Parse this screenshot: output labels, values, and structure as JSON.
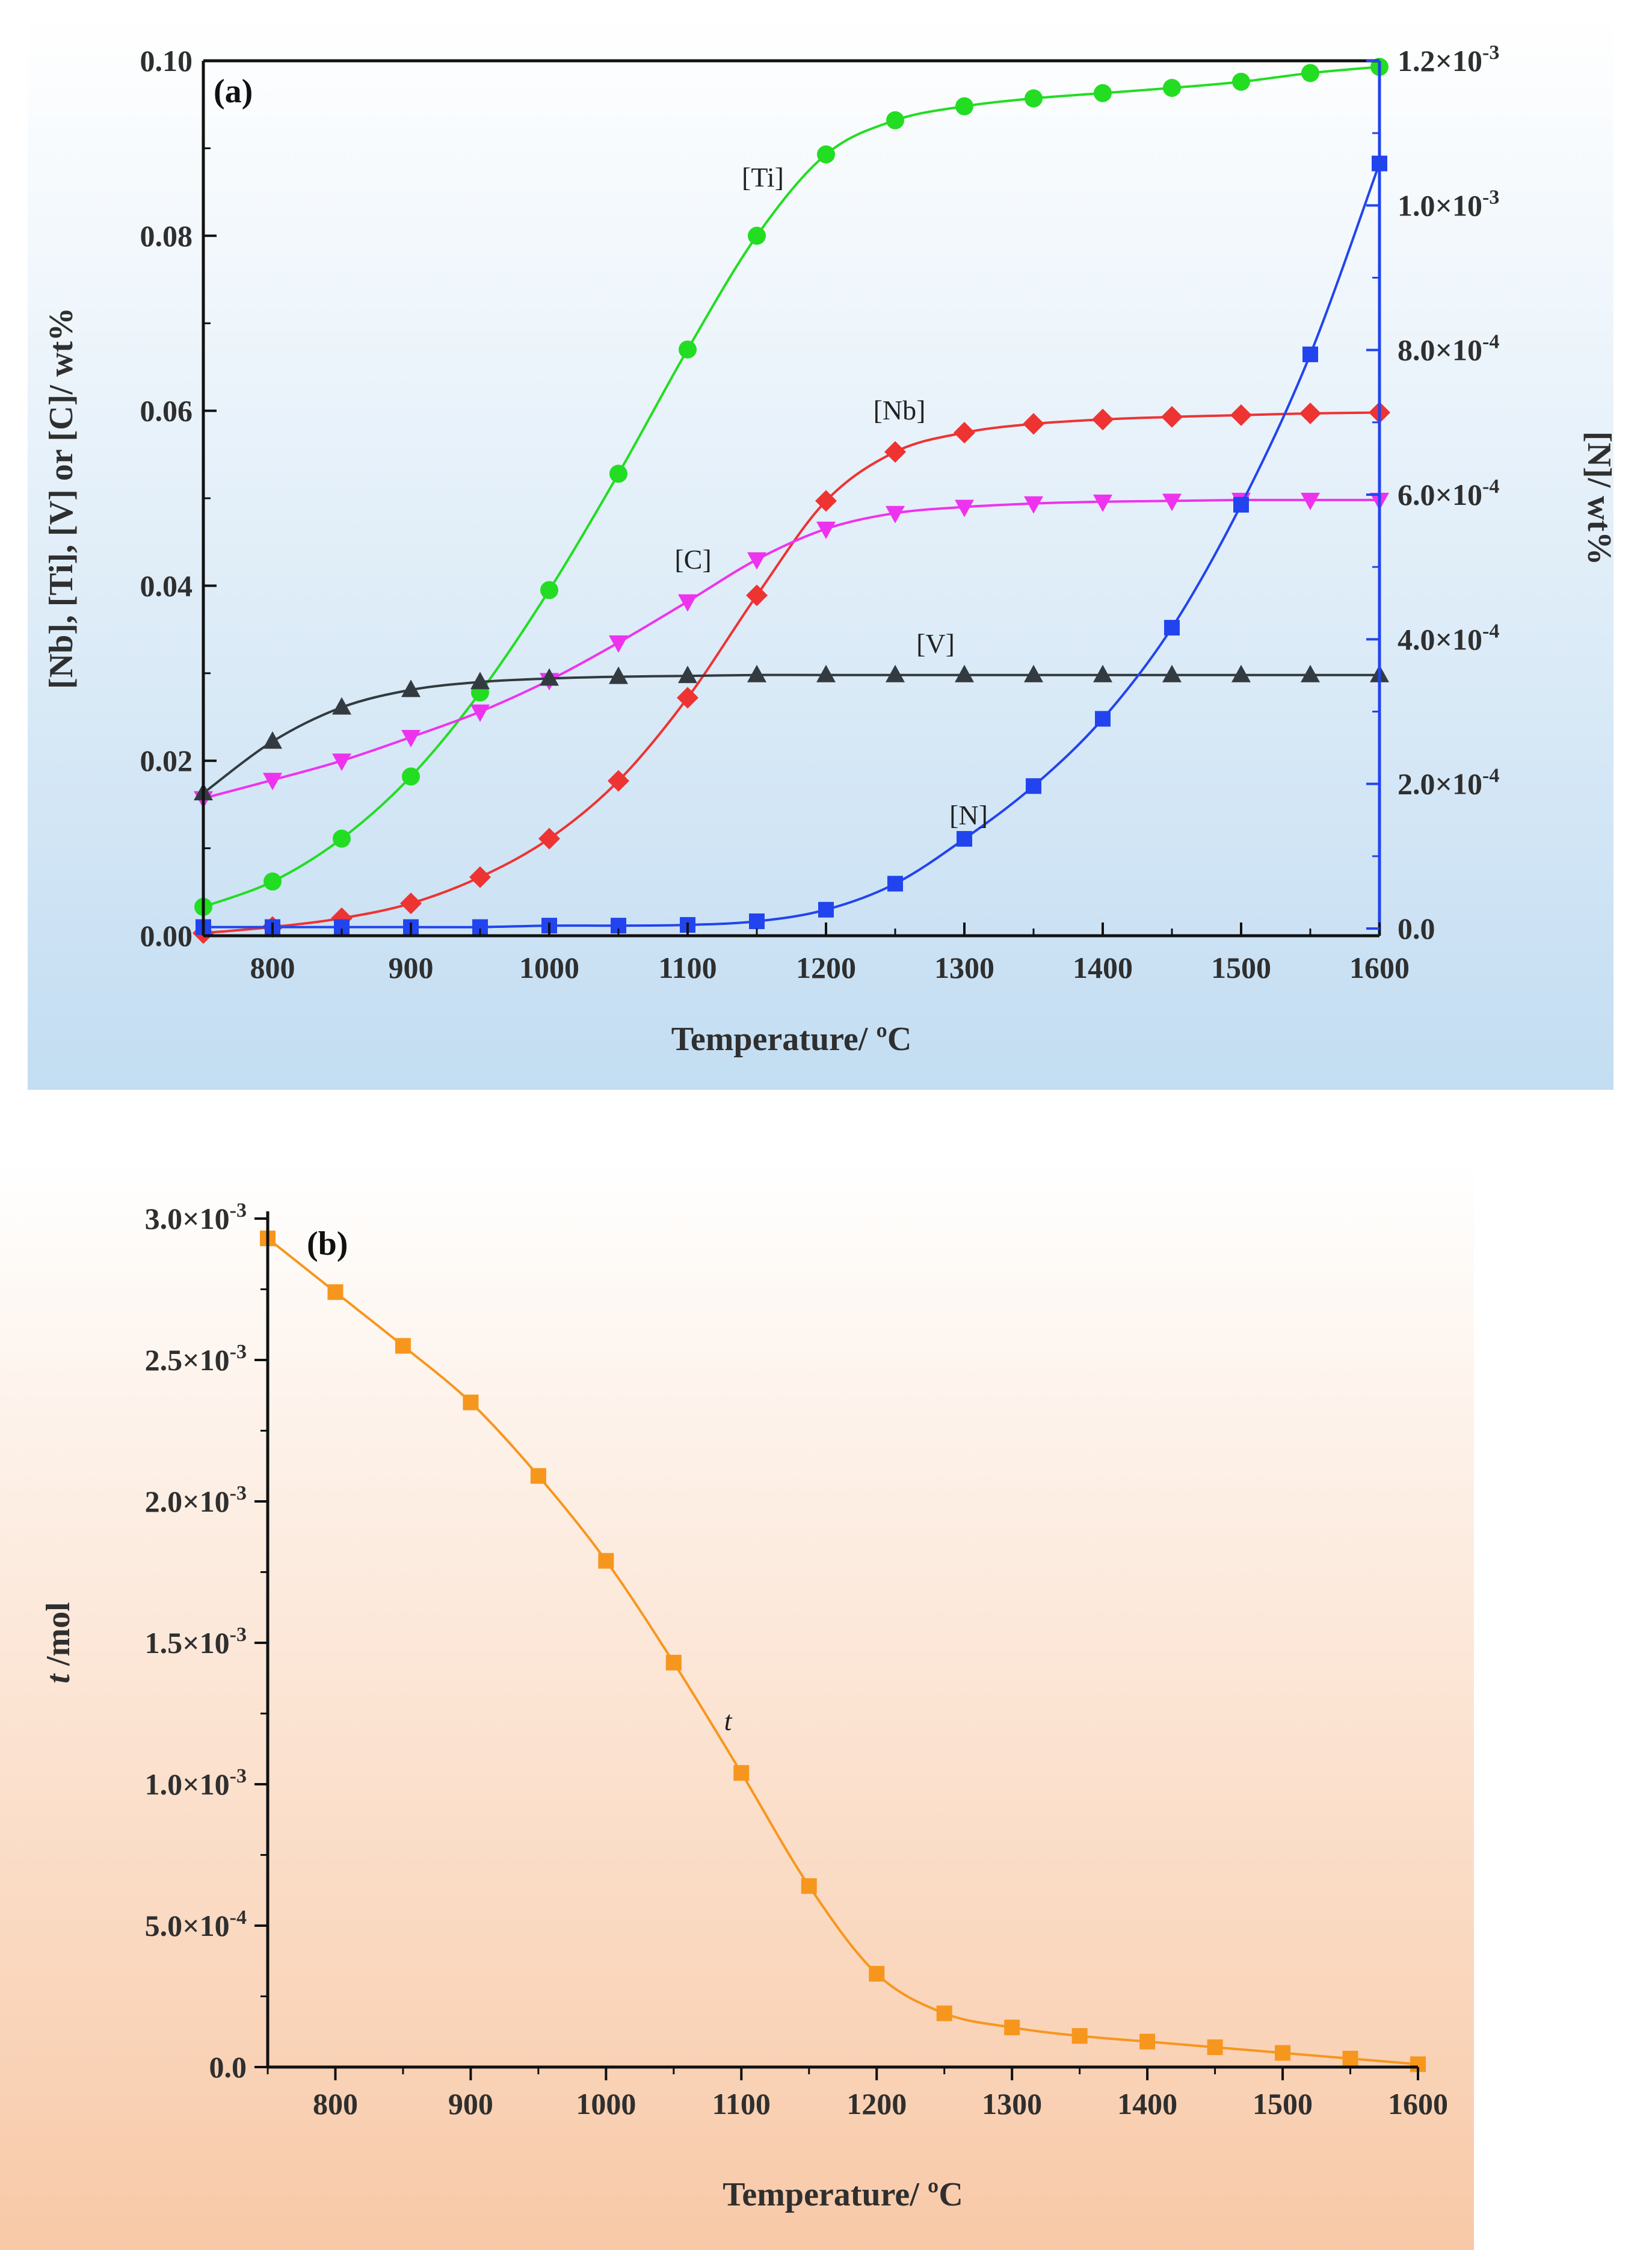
{
  "chart_data": [
    {
      "panel": "(a)",
      "type": "line",
      "xlabel": "Temperature/ ºC",
      "ylabel_left": "[Nb], [Ti], [V] or [C]/ wt%",
      "ylabel_right": "[N]/ wt%",
      "xlim": [
        750,
        1600
      ],
      "ylim_left": [
        0,
        0.1
      ],
      "ylim_right": [
        -1e-05,
        0.0012
      ],
      "x_ticks": [
        "800",
        "900",
        "1000",
        "1100",
        "1200",
        "1300",
        "1400",
        "1500",
        "1600"
      ],
      "y_left_ticks": [
        "0.00",
        "0.02",
        "0.04",
        "0.06",
        "0.08",
        "0.10"
      ],
      "y_right_ticks": [
        {
          "mant": "0.0",
          "exp": ""
        },
        {
          "mant": "2.0×10",
          "exp": "-4"
        },
        {
          "mant": "4.0×10",
          "exp": "-4"
        },
        {
          "mant": "6.0×10",
          "exp": "-4"
        },
        {
          "mant": "8.0×10",
          "exp": "-4"
        },
        {
          "mant": "1.0×10",
          "exp": "-3"
        },
        {
          "mant": "1.2×10",
          "exp": "-3"
        }
      ],
      "x": [
        750,
        800,
        850,
        900,
        950,
        1000,
        1050,
        1100,
        1150,
        1200,
        1250,
        1300,
        1350,
        1400,
        1450,
        1500,
        1550,
        1600
      ],
      "series": [
        {
          "name": "[Ti]",
          "axis": "left",
          "marker": "circle",
          "color": "#22dd22",
          "values": [
            0.0033,
            0.0062,
            0.0111,
            0.0182,
            0.0278,
            0.0395,
            0.0528,
            0.067,
            0.08,
            0.0893,
            0.0932,
            0.0948,
            0.0957,
            0.0963,
            0.0969,
            0.0976,
            0.0986,
            0.0993
          ]
        },
        {
          "name": "[Nb]",
          "axis": "left",
          "marker": "diamond",
          "color": "#ee3333",
          "values": [
            0.0003,
            0.001,
            0.002,
            0.0037,
            0.0067,
            0.0111,
            0.0177,
            0.0272,
            0.0389,
            0.0497,
            0.0553,
            0.0575,
            0.0585,
            0.059,
            0.0593,
            0.0595,
            0.0597,
            0.0598
          ]
        },
        {
          "name": "[C]",
          "axis": "left",
          "marker": "triangle-down",
          "color": "#ee33ee",
          "values": [
            0.0157,
            0.0178,
            0.02,
            0.0227,
            0.0256,
            0.0292,
            0.0335,
            0.0382,
            0.043,
            0.0465,
            0.0483,
            0.049,
            0.0494,
            0.0496,
            0.0497,
            0.0498,
            0.0498,
            0.0498
          ]
        },
        {
          "name": "[V]",
          "axis": "left",
          "marker": "triangle-up",
          "color": "#333b40",
          "values": [
            0.0163,
            0.0222,
            0.0261,
            0.0281,
            0.029,
            0.0294,
            0.0296,
            0.0297,
            0.0298,
            0.0298,
            0.0298,
            0.0298,
            0.0298,
            0.0298,
            0.0298,
            0.0298,
            0.0298,
            0.0298
          ]
        },
        {
          "name": "[N]",
          "axis": "right",
          "marker": "square",
          "color": "#2244ee",
          "values": [
            2e-06,
            2e-06,
            2e-06,
            2e-06,
            2e-06,
            4e-06,
            4e-06,
            5e-06,
            1e-05,
            2.6e-05,
            6.2e-05,
            0.000124,
            0.000197,
            0.00029,
            0.000416,
            0.000586,
            0.000794,
            0.001058
          ]
        }
      ],
      "annotations": [
        "[Ti]",
        "[Nb]",
        "[C]",
        "[V]",
        "[N]"
      ]
    },
    {
      "panel": "(b)",
      "type": "line",
      "xlabel": "Temperature/ ºC",
      "ylabel": "t /mol",
      "ylabel_var": "t",
      "ylabel_unit": " /mol",
      "xlim": [
        750,
        1600
      ],
      "ylim": [
        0,
        0.003
      ],
      "x_ticks": [
        "800",
        "900",
        "1000",
        "1100",
        "1200",
        "1300",
        "1400",
        "1500",
        "1600"
      ],
      "y_ticks": [
        {
          "mant": "0.0",
          "exp": ""
        },
        {
          "mant": "5.0×10",
          "exp": "-4"
        },
        {
          "mant": "1.0×10",
          "exp": "-3"
        },
        {
          "mant": "1.5×10",
          "exp": "-3"
        },
        {
          "mant": "2.0×10",
          "exp": "-3"
        },
        {
          "mant": "2.5×10",
          "exp": "-3"
        },
        {
          "mant": "3.0×10",
          "exp": "-3"
        }
      ],
      "x": [
        750,
        800,
        850,
        900,
        950,
        1000,
        1050,
        1100,
        1150,
        1200,
        1250,
        1300,
        1350,
        1400,
        1450,
        1500,
        1550,
        1600
      ],
      "series": [
        {
          "name": "t",
          "marker": "square",
          "color": "#f7961d",
          "values": [
            0.00293,
            0.00274,
            0.00255,
            0.00235,
            0.00209,
            0.00179,
            0.00143,
            0.00104,
            0.00064,
            0.00033,
            0.00019,
            0.00014,
            0.00011,
            9e-05,
            7e-05,
            5e-05,
            3e-05,
            1e-05
          ]
        }
      ],
      "annotations": [
        "t"
      ]
    }
  ]
}
